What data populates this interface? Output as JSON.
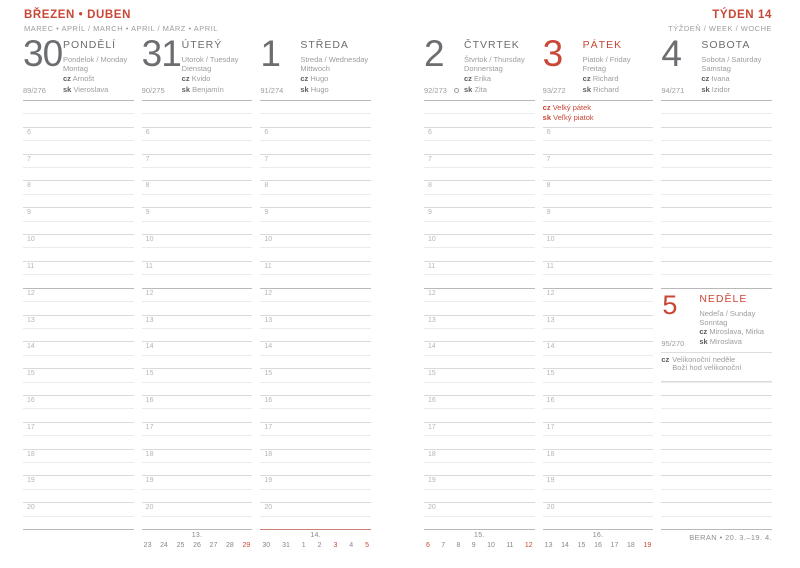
{
  "left_page": {
    "title": "BŘEZEN • DUBEN",
    "subtitle": "MAREC • APRÍL / MARCH • APRIL / MÄRZ • APRIL",
    "days": [
      {
        "num": "30",
        "name": "PONDĚLÍ",
        "trans1": "Pondelok / Monday",
        "trans2": "Montag",
        "cz": "Arnošt",
        "sk": "Vieroslava",
        "doy": "89/276"
      },
      {
        "num": "31",
        "name": "ÚTERÝ",
        "trans1": "Utorok / Tuesday",
        "trans2": "Dienstag",
        "cz": "Kvido",
        "sk": "Benjamín",
        "doy": "90/275"
      },
      {
        "num": "1",
        "name": "STŘEDA",
        "trans1": "Streda / Wednesday",
        "trans2": "Mittwoch",
        "cz": "Hugo",
        "sk": "Hugo",
        "doy": "91/274"
      }
    ]
  },
  "right_page": {
    "title": "TÝDEN 14",
    "subtitle": "TÝŽDEŇ / WEEK / WOCHE",
    "days": [
      {
        "num": "2",
        "name": "ČTVRTEK",
        "trans1": "Štvrtok / Thursday",
        "trans2": "Donnerstag",
        "cz": "Erika",
        "sk": "Zita",
        "doy": "92/273",
        "moon": true
      },
      {
        "num": "3",
        "name": "PÁTEK",
        "trans1": "Piatok / Friday",
        "trans2": "Freitag",
        "cz": "Richard",
        "sk": "Richard",
        "doy": "93/272",
        "holiday_cz": "Velký pátek",
        "holiday_sk": "Veľký piatok"
      },
      {
        "num": "4",
        "name": "SOBOTA",
        "trans1": "Sobota / Saturday",
        "trans2": "Samstag",
        "cz": "Ivana",
        "sk": "Izidor",
        "doy": "94/271"
      }
    ],
    "sunday": {
      "num": "5",
      "name": "NEDĚLE",
      "trans1": "Nedeľa / Sunday",
      "trans2": "Sonntag",
      "cz": "Miroslava, Mirka",
      "sk": "Miroslava",
      "doy": "95/270",
      "holiday_line1": "Velikonoční neděle",
      "holiday_line2": "Boží hod velikonoční"
    },
    "zodiac": "BERAN • 20. 3.–19. 4."
  },
  "labels": {
    "cz": "cz",
    "sk": "sk"
  },
  "hours": [
    "6",
    "7",
    "8",
    "9",
    "10",
    "11",
    "12",
    "13",
    "14",
    "15",
    "16",
    "17",
    "18",
    "19",
    "20"
  ],
  "minicals": [
    {
      "week": "13.",
      "days": [
        "23",
        "24",
        "25",
        "26",
        "27",
        "28",
        "29"
      ],
      "red_days": [
        "29"
      ],
      "current": false
    },
    {
      "week": "14.",
      "days": [
        "30",
        "31",
        "1",
        "2",
        "3",
        "4",
        "5"
      ],
      "red_days": [
        "3",
        "5"
      ],
      "current": true
    },
    {
      "week": "15.",
      "days": [
        "6",
        "7",
        "8",
        "9",
        "10",
        "11",
        "12"
      ],
      "red_days": [
        "6",
        "12"
      ],
      "current": false
    },
    {
      "week": "16.",
      "days": [
        "13",
        "14",
        "15",
        "16",
        "17",
        "18",
        "19"
      ],
      "red_days": [
        "19"
      ],
      "current": false
    }
  ]
}
